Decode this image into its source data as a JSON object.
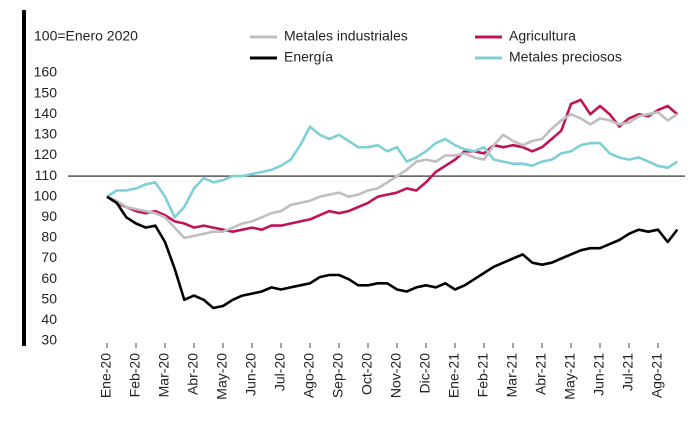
{
  "chart_data": {
    "type": "line",
    "note_label": "100=Enero 2020",
    "categories": [
      "Ene-20",
      null,
      null,
      "Feb-20",
      null,
      null,
      "Mar-20",
      null,
      null,
      "Abr-20",
      null,
      null,
      "May-20",
      null,
      null,
      "Jun-20",
      null,
      null,
      "Jul-20",
      null,
      null,
      "Ago-20",
      null,
      null,
      "Sep-20",
      null,
      null,
      "Oct-20",
      null,
      null,
      "Nov-20",
      null,
      null,
      "Dic-20",
      null,
      null,
      "Ene-21",
      null,
      null,
      "Feb-21",
      null,
      null,
      "Mar-21",
      null,
      null,
      "Abr-21",
      null,
      null,
      "May-21",
      null,
      null,
      "Jun-21",
      null,
      null,
      "Jul-21",
      null,
      null,
      "Ago-21",
      null,
      null
    ],
    "series": [
      {
        "name": "Metales industriales",
        "color": "#bfbfbf",
        "values": [
          100,
          98,
          95,
          94,
          93,
          92,
          90,
          85,
          80,
          81,
          82,
          83,
          83,
          85,
          87,
          88,
          90,
          92,
          93,
          96,
          97,
          98,
          100,
          101,
          102,
          100,
          101,
          103,
          104,
          107,
          110,
          113,
          117,
          118,
          117,
          120,
          120,
          121,
          119,
          118,
          125,
          130,
          127,
          125,
          127,
          128,
          133,
          137,
          140,
          138,
          135,
          138,
          137,
          135,
          136,
          139,
          140,
          141,
          137,
          140
        ]
      },
      {
        "name": "Agricultura",
        "color": "#c0145a",
        "values": [
          100,
          97,
          95,
          93,
          92,
          93,
          91,
          88,
          87,
          85,
          86,
          85,
          84,
          83,
          84,
          85,
          84,
          86,
          86,
          87,
          88,
          89,
          91,
          93,
          92,
          93,
          95,
          97,
          100,
          101,
          102,
          104,
          103,
          107,
          112,
          115,
          118,
          122,
          122,
          121,
          125,
          124,
          125,
          124,
          122,
          124,
          128,
          132,
          145,
          147,
          140,
          144,
          140,
          134,
          138,
          140,
          139,
          142,
          144,
          140
        ]
      },
      {
        "name": "Energía",
        "color": "#000000",
        "values": [
          100,
          97,
          90,
          87,
          85,
          86,
          78,
          65,
          50,
          52,
          50,
          46,
          47,
          50,
          52,
          53,
          54,
          56,
          55,
          56,
          57,
          58,
          61,
          62,
          62,
          60,
          57,
          57,
          58,
          58,
          55,
          54,
          56,
          57,
          56,
          58,
          55,
          57,
          60,
          63,
          66,
          68,
          70,
          72,
          68,
          67,
          68,
          70,
          72,
          74,
          75,
          75,
          77,
          79,
          82,
          84,
          83,
          84,
          78,
          84
        ]
      },
      {
        "name": "Metales preciosos",
        "color": "#7fcfd6",
        "values": [
          100,
          103,
          103,
          104,
          106,
          107,
          100,
          90,
          95,
          104,
          109,
          107,
          108,
          110,
          110,
          111,
          112,
          113,
          115,
          118,
          125,
          134,
          130,
          128,
          130,
          127,
          124,
          124,
          125,
          122,
          124,
          117,
          119,
          122,
          126,
          128,
          125,
          123,
          122,
          124,
          118,
          117,
          116,
          116,
          115,
          117,
          118,
          121,
          122,
          125,
          126,
          126,
          121,
          119,
          118,
          119,
          117,
          115,
          114,
          117
        ]
      }
    ],
    "ylim": [
      30,
      160
    ],
    "yticks": [
      30,
      40,
      50,
      60,
      70,
      80,
      90,
      100,
      110,
      120,
      130,
      140,
      150,
      160
    ],
    "reference_line": 110,
    "legend": "top"
  }
}
